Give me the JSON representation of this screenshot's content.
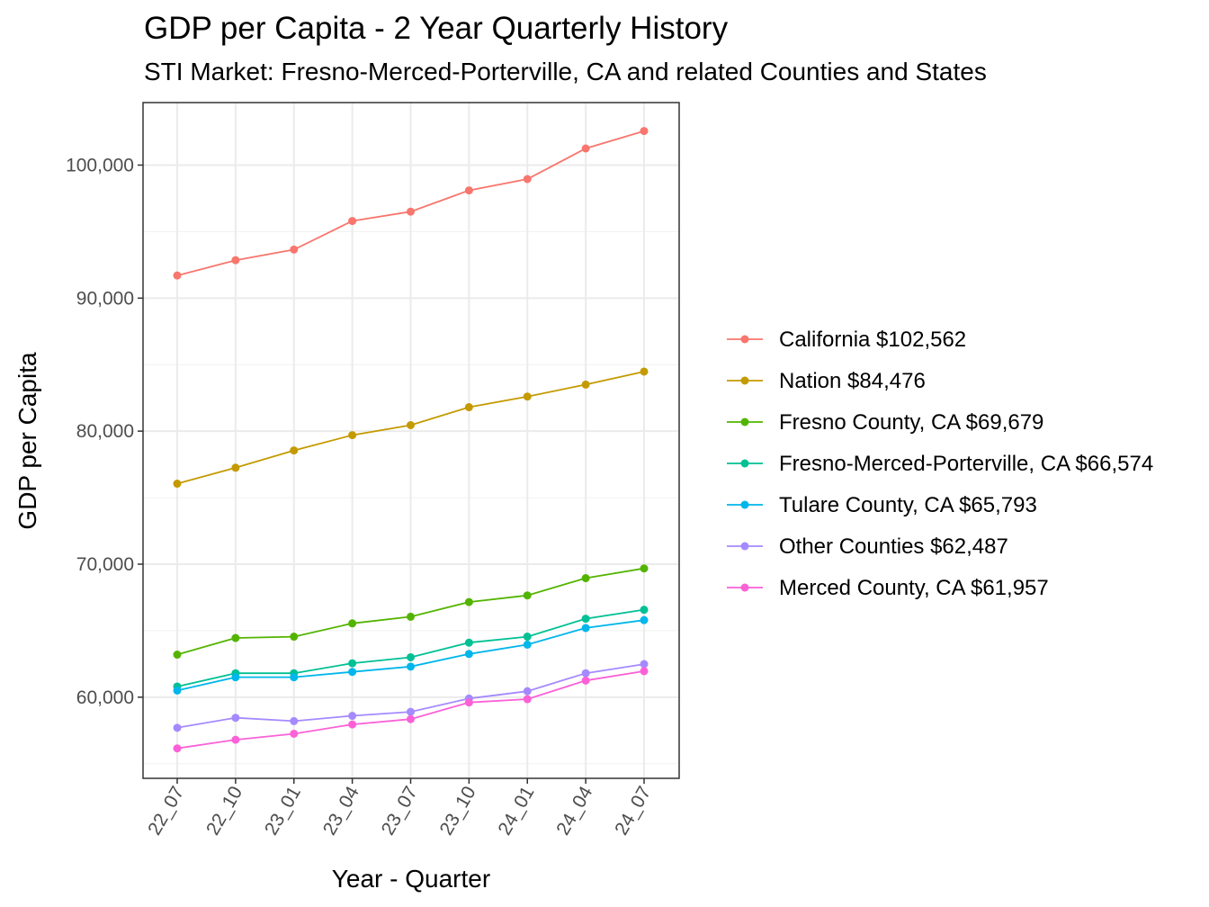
{
  "title": "GDP per Capita - 2 Year Quarterly History",
  "subtitle": "STI Market: Fresno-Merced-Porterville, CA and related Counties and States",
  "chart_data": {
    "type": "line",
    "title": "GDP per Capita - 2 Year Quarterly History",
    "subtitle": "STI Market: Fresno-Merced-Porterville, CA and related Counties and States",
    "xlabel": "Year - Quarter",
    "ylabel": "GDP per Capita",
    "categories": [
      "22_07",
      "22_10",
      "23_01",
      "23_04",
      "23_07",
      "23_10",
      "24_01",
      "24_04",
      "24_07"
    ],
    "ylim": [
      53900,
      104700
    ],
    "yticks": [
      60000,
      70000,
      80000,
      90000,
      100000
    ],
    "ytick_labels": [
      "60,000",
      "70,000",
      "80,000",
      "90,000",
      "100,000"
    ],
    "grid": true,
    "legend_position": "right",
    "series": [
      {
        "name": "California $102,562",
        "color": "#F8766D",
        "values": [
          91700,
          92850,
          93650,
          95800,
          96500,
          98100,
          98950,
          101250,
          102562
        ]
      },
      {
        "name": "Nation $84,476",
        "color": "#C49A00",
        "values": [
          76050,
          77250,
          78550,
          79700,
          80450,
          81800,
          82600,
          83500,
          84476
        ]
      },
      {
        "name": "Fresno County, CA $69,679",
        "color": "#53B400",
        "values": [
          63200,
          64450,
          64550,
          65550,
          66050,
          67150,
          67650,
          68950,
          69679
        ]
      },
      {
        "name": "Fresno-Merced-Porterville, CA $66,574",
        "color": "#00C094",
        "values": [
          60800,
          61800,
          61800,
          62550,
          63000,
          64100,
          64550,
          65900,
          66574
        ]
      },
      {
        "name": "Tulare County, CA $65,793",
        "color": "#00B6EB",
        "values": [
          60500,
          61500,
          61500,
          61900,
          62300,
          63250,
          63950,
          65200,
          65793
        ]
      },
      {
        "name": "Other Counties $62,487",
        "color": "#A58AFF",
        "values": [
          57700,
          58450,
          58200,
          58600,
          58900,
          59900,
          60450,
          61800,
          62487
        ]
      },
      {
        "name": "Merced County, CA $61,957",
        "color": "#FB61D7",
        "values": [
          56150,
          56800,
          57250,
          57950,
          58350,
          59600,
          59850,
          61250,
          61957
        ]
      }
    ]
  }
}
